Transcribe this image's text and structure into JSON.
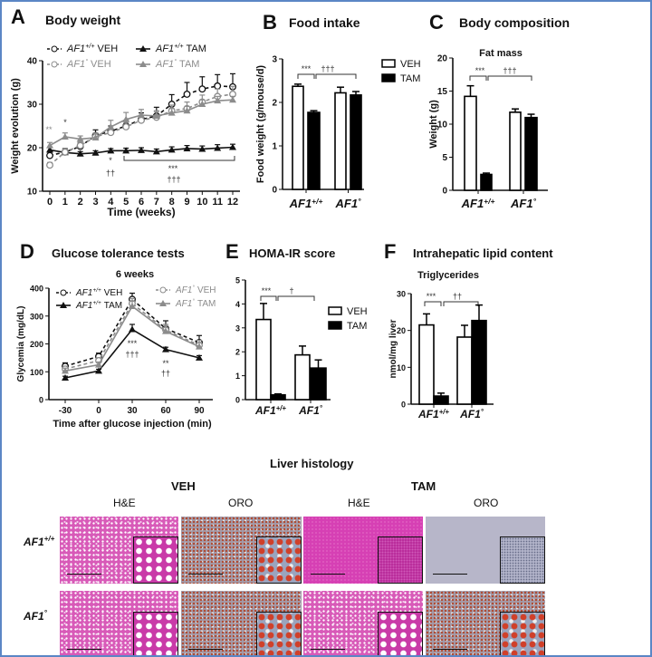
{
  "panels": {
    "A": {
      "letter": "A",
      "title": "Body weight"
    },
    "B": {
      "letter": "B",
      "title": "Food intake"
    },
    "C": {
      "letter": "C",
      "title": "Body composition"
    },
    "D": {
      "letter": "D",
      "title": "Glucose tolerance tests"
    },
    "E": {
      "letter": "E",
      "title": "HOMA-IR score"
    },
    "F": {
      "letter": "F",
      "title": "Intrahepatic lipid content"
    }
  },
  "colors": {
    "wt": "#111111",
    "mut": "#8c8c8c",
    "veh_fill": "#ffffff",
    "tam_fill": "#000000",
    "frame": "#5b86c5"
  },
  "chart_data": [
    {
      "id": "A",
      "type": "line",
      "xlabel": "Time (weeks)",
      "ylabel": "Weight evolution (g)",
      "xlim": [
        0,
        12
      ],
      "ylim": [
        10,
        40
      ],
      "xticks": [
        0,
        1,
        2,
        3,
        4,
        5,
        6,
        7,
        8,
        9,
        10,
        11,
        12
      ],
      "yticks": [
        10,
        20,
        30,
        40
      ],
      "x": [
        0,
        1,
        2,
        3,
        4,
        5,
        6,
        7,
        8,
        9,
        10,
        11,
        12
      ],
      "series": [
        {
          "gene": "AF1",
          "sup": "+/+",
          "treat": "VEH",
          "color": "#111111",
          "dashed": true,
          "marker": "open-circle",
          "values": [
            18.2,
            19.0,
            20.3,
            22.8,
            23.8,
            25.0,
            26.5,
            27.3,
            30.0,
            32.3,
            33.5,
            34.2,
            34.0
          ],
          "error": [
            0.8,
            0.8,
            0.8,
            1.3,
            1.2,
            1.3,
            1.5,
            2.0,
            2.2,
            2.7,
            2.8,
            2.6,
            3.0
          ]
        },
        {
          "gene": "AF1",
          "sup": "+/+",
          "treat": "TAM",
          "color": "#111111",
          "dashed": false,
          "marker": "filled-triangle",
          "values": [
            19.5,
            18.9,
            18.6,
            18.8,
            19.3,
            19.3,
            19.4,
            19.1,
            19.5,
            19.8,
            19.7,
            19.9,
            20.1
          ],
          "error": [
            0.6,
            0.5,
            0.5,
            0.5,
            0.5,
            0.6,
            0.6,
            0.6,
            0.7,
            0.7,
            0.7,
            0.8,
            0.7
          ]
        },
        {
          "gene": "AF1",
          "sup": "°",
          "treat": "VEH",
          "color": "#8c8c8c",
          "dashed": true,
          "marker": "open-circle",
          "values": [
            16.0,
            19.0,
            20.5,
            22.5,
            23.5,
            24.8,
            26.3,
            27.0,
            28.5,
            29.0,
            30.5,
            31.8,
            32.3
          ],
          "error": [
            0.6,
            0.7,
            0.8,
            0.9,
            1.0,
            1.0,
            1.2,
            1.3,
            1.3,
            1.5,
            1.6,
            1.7,
            1.8
          ]
        },
        {
          "gene": "AF1",
          "sup": "°",
          "treat": "TAM",
          "color": "#8c8c8c",
          "dashed": false,
          "marker": "filled-triangle",
          "values": [
            20.5,
            22.5,
            22.0,
            22.3,
            24.8,
            26.5,
            27.5,
            27.3,
            28.0,
            28.5,
            30.0,
            30.8,
            31.0
          ],
          "error": [
            0.7,
            0.9,
            0.7,
            1.0,
            1.5,
            1.6,
            1.3,
            1.2,
            1.0,
            1.0,
            1.0,
            1.0,
            0.8
          ]
        }
      ],
      "annotations": [
        "**",
        "*",
        "*",
        "††",
        "***",
        "†††"
      ]
    },
    {
      "id": "B",
      "type": "bar",
      "xlabel": "",
      "ylabel": "Food weight (g/mouse/d)",
      "ylim": [
        0,
        3
      ],
      "yticks": [
        0,
        1,
        2,
        3
      ],
      "categories": [
        {
          "gene": "AF1",
          "sup": "+/+"
        },
        {
          "gene": "AF1",
          "sup": "°"
        }
      ],
      "series": [
        {
          "name": "VEH",
          "values": [
            2.37,
            2.22
          ],
          "error": [
            0.05,
            0.13
          ]
        },
        {
          "name": "TAM",
          "values": [
            1.77,
            2.17
          ],
          "error": [
            0.04,
            0.08
          ]
        }
      ],
      "legend": [
        "VEH",
        "TAM"
      ],
      "annotations": [
        "***",
        "†††"
      ]
    },
    {
      "id": "C",
      "type": "bar",
      "subtitle": "Fat mass",
      "xlabel": "",
      "ylabel": "Weight (g)",
      "ylim": [
        0,
        20
      ],
      "yticks": [
        0,
        5,
        10,
        15,
        20
      ],
      "categories": [
        {
          "gene": "AF1",
          "sup": "+/+"
        },
        {
          "gene": "AF1",
          "sup": "°"
        }
      ],
      "series": [
        {
          "name": "VEH",
          "values": [
            14.2,
            11.8
          ],
          "error": [
            1.6,
            0.5
          ]
        },
        {
          "name": "TAM",
          "values": [
            2.4,
            11.0
          ],
          "error": [
            0.2,
            0.5
          ]
        }
      ],
      "annotations": [
        "***",
        "†††"
      ]
    },
    {
      "id": "D",
      "type": "line",
      "subtitle": "6 weeks",
      "xlabel": "Time after glucose injection (min)",
      "ylabel": "Glycemia (mg/dL)",
      "xlim": [
        -30,
        90
      ],
      "ylim": [
        0,
        400
      ],
      "xticks": [
        -30,
        0,
        30,
        60,
        90
      ],
      "yticks": [
        0,
        100,
        200,
        300,
        400
      ],
      "x": [
        -30,
        0,
        30,
        60,
        90
      ],
      "series": [
        {
          "gene": "AF1",
          "sup": "+/+",
          "treat": "VEH",
          "color": "#111111",
          "dashed": true,
          "marker": "open-circle",
          "values": [
            120,
            155,
            360,
            255,
            205
          ],
          "error": [
            12,
            12,
            22,
            28,
            25
          ]
        },
        {
          "gene": "AF1",
          "sup": "+/+",
          "treat": "TAM",
          "color": "#111111",
          "dashed": false,
          "marker": "filled-triangle",
          "values": [
            78,
            103,
            252,
            180,
            150
          ],
          "error": [
            6,
            6,
            18,
            8,
            8
          ]
        },
        {
          "gene": "AF1",
          "sup": "°",
          "treat": "VEH",
          "color": "#8c8c8c",
          "dashed": true,
          "marker": "open-circle",
          "values": [
            110,
            140,
            345,
            250,
            195
          ],
          "error": [
            10,
            10,
            18,
            20,
            18
          ]
        },
        {
          "gene": "AF1",
          "sup": "°",
          "treat": "TAM",
          "color": "#8c8c8c",
          "dashed": false,
          "marker": "filled-triangle",
          "values": [
            103,
            125,
            335,
            245,
            190
          ],
          "error": [
            10,
            10,
            18,
            20,
            15
          ]
        }
      ],
      "annotations": [
        "***",
        "†††",
        "**",
        "††"
      ]
    },
    {
      "id": "E",
      "type": "bar",
      "xlabel": "",
      "ylabel": "",
      "ylim": [
        0,
        5
      ],
      "yticks": [
        0,
        1,
        2,
        3,
        4,
        5
      ],
      "categories": [
        {
          "gene": "AF1",
          "sup": "+/+"
        },
        {
          "gene": "AF1",
          "sup": "°"
        }
      ],
      "series": [
        {
          "name": "VEH",
          "values": [
            3.35,
            1.87
          ],
          "error": [
            0.67,
            0.37
          ]
        },
        {
          "name": "TAM",
          "values": [
            0.2,
            1.32
          ],
          "error": [
            0.04,
            0.34
          ]
        }
      ],
      "legend": [
        "VEH",
        "TAM"
      ],
      "annotations": [
        "***",
        "†"
      ]
    },
    {
      "id": "F",
      "type": "bar",
      "subtitle": "Triglycerides",
      "xlabel": "",
      "ylabel": "nmol/mg liver",
      "ylim": [
        0,
        30
      ],
      "yticks": [
        0,
        10,
        20,
        30
      ],
      "categories": [
        {
          "gene": "AF1",
          "sup": "+/+"
        },
        {
          "gene": "AF1",
          "sup": "°"
        }
      ],
      "series": [
        {
          "name": "VEH",
          "values": [
            21.5,
            18.2
          ],
          "error": [
            3.0,
            3.2
          ]
        },
        {
          "name": "TAM",
          "values": [
            2.2,
            22.7
          ],
          "error": [
            0.8,
            4.2
          ]
        }
      ],
      "annotations": [
        "***",
        "††"
      ]
    }
  ],
  "histology": {
    "title": "Liver histology",
    "groups": [
      "VEH",
      "TAM"
    ],
    "stains": [
      "H&E",
      "ORO",
      "H&E",
      "ORO"
    ],
    "rows": [
      {
        "gene": "AF1",
        "sup": "+/+"
      },
      {
        "gene": "AF1",
        "sup": "°"
      }
    ]
  }
}
